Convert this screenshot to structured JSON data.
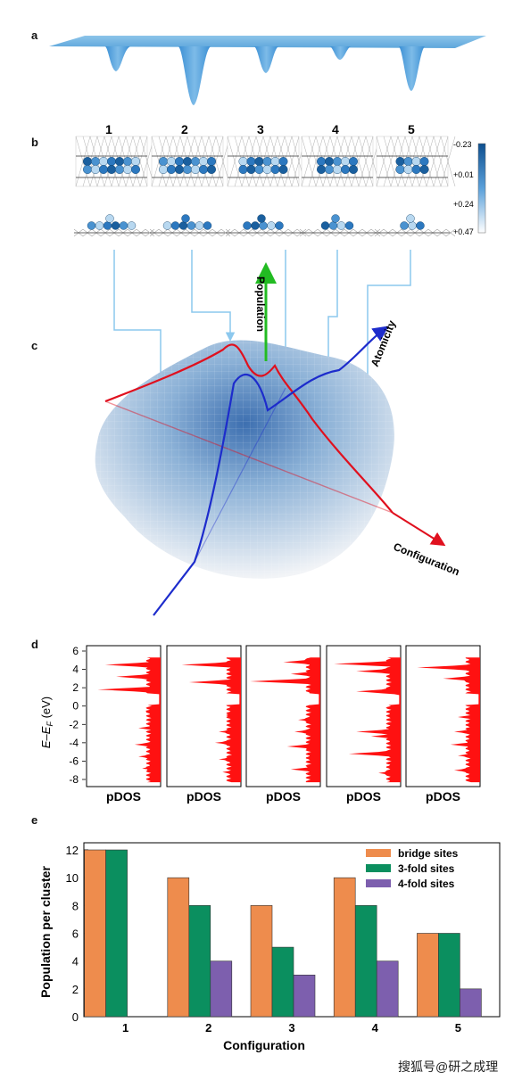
{
  "panels": {
    "a": {
      "letter": "a"
    },
    "b": {
      "letter": "b",
      "cluster_numbers": [
        "1",
        "2",
        "3",
        "4",
        "5"
      ],
      "colorbar_ticks": [
        "-0.23",
        "+0.01",
        "+0.24",
        "+0.47"
      ],
      "colors": {
        "dark": "#1a5f9e",
        "mid": "#4a92d0",
        "light": "#b8d8f0"
      }
    },
    "c": {
      "letter": "c",
      "axis_labels": {
        "population": "Population",
        "atomicity": "Atomicity",
        "configuration": "Configuration"
      },
      "colors": {
        "population": "#22bb22",
        "atomicity": "#1d2ccc",
        "configuration": "#e0101e"
      }
    },
    "d": {
      "letter": "d",
      "ylabel_main": "E–E",
      "ylabel_sub": "F",
      "ylabel_unit": " (eV)",
      "yticks": [
        "6",
        "4",
        "2",
        "0",
        "-2",
        "-4",
        "-6",
        "-8"
      ],
      "xlabel": "pDOS",
      "fill_color": "#ff1111"
    },
    "e": {
      "letter": "e"
    }
  },
  "watermark": "搜狐号@研之成理",
  "chart_data": {
    "type": "bar",
    "categories": [
      "1",
      "2",
      "3",
      "4",
      "5"
    ],
    "series": [
      {
        "name": "bridge sites",
        "values": [
          12,
          10,
          8,
          10,
          6
        ],
        "color": "#ee8c4d"
      },
      {
        "name": "3-fold sites",
        "values": [
          12,
          8,
          5,
          8,
          6
        ],
        "color": "#0b8f5f"
      },
      {
        "name": "4-fold sites",
        "values": [
          0,
          4,
          3,
          4,
          2
        ],
        "color": "#7d5fae"
      }
    ],
    "xlabel": "Configuration",
    "ylabel": "Population per cluster",
    "ylim": [
      0,
      12
    ],
    "yticks": [
      "0",
      "2",
      "4",
      "6",
      "8",
      "10",
      "12"
    ],
    "legend_position": "top-right"
  }
}
